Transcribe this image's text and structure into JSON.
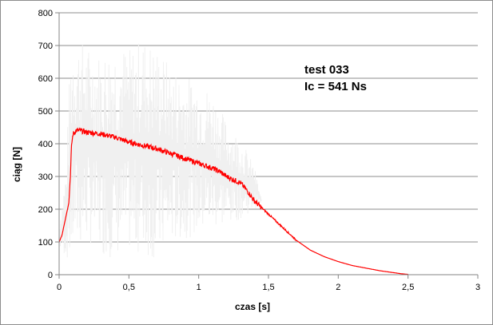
{
  "chart_data": {
    "type": "line",
    "title": "",
    "xlabel": "czas [s]",
    "ylabel": "ciąg [N]",
    "xlim": [
      0,
      3
    ],
    "ylim": [
      0,
      800
    ],
    "x_ticks": [
      0,
      0.5,
      1,
      1.5,
      2,
      2.5,
      3
    ],
    "x_tick_labels": [
      "0",
      "0,5",
      "1",
      "1,5",
      "2",
      "2,5",
      "3"
    ],
    "y_ticks": [
      0,
      100,
      200,
      300,
      400,
      500,
      600,
      700,
      800
    ],
    "y_tick_labels": [
      "0",
      "100",
      "200",
      "300",
      "400",
      "500",
      "600",
      "700",
      "800"
    ],
    "grid": "horizontal",
    "annotations": [
      "test 033",
      "Ic = 541 Ns"
    ],
    "series": [
      {
        "color": "#ff0000",
        "x": [
          0,
          0.02,
          0.05,
          0.07,
          0.08,
          0.09,
          0.1,
          0.12,
          0.15,
          0.2,
          0.3,
          0.4,
          0.5,
          0.6,
          0.7,
          0.8,
          0.9,
          1.0,
          1.1,
          1.15,
          1.2,
          1.25,
          1.3,
          1.35,
          1.4,
          1.45,
          1.5,
          1.6,
          1.7,
          1.8,
          1.9,
          2.0,
          2.1,
          2.2,
          2.3,
          2.4,
          2.45,
          2.5
        ],
        "y": [
          100,
          120,
          180,
          220,
          300,
          400,
          430,
          440,
          440,
          435,
          430,
          420,
          405,
          395,
          385,
          370,
          355,
          340,
          325,
          315,
          300,
          290,
          280,
          255,
          225,
          205,
          185,
          145,
          105,
          75,
          55,
          40,
          28,
          20,
          12,
          6,
          3,
          1
        ]
      },
      {
        "color": "#f0f0f0",
        "x": [
          0,
          0.05,
          0.08,
          0.1,
          0.15,
          0.2,
          0.3,
          0.4,
          0.5,
          0.6,
          0.7,
          0.8,
          0.9,
          1.0,
          1.1,
          1.2,
          1.3,
          1.4,
          1.45
        ],
        "y_min": [
          80,
          50,
          30,
          60,
          80,
          100,
          60,
          50,
          70,
          60,
          40,
          90,
          110,
          120,
          140,
          150,
          170,
          200,
          220
        ],
        "y_max": [
          160,
          330,
          680,
          750,
          720,
          700,
          680,
          720,
          690,
          730,
          700,
          640,
          610,
          600,
          560,
          470,
          420,
          330,
          230
        ]
      }
    ]
  }
}
